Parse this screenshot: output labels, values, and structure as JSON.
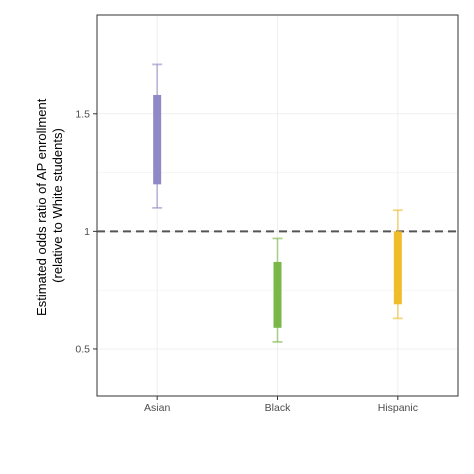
{
  "chart_data": {
    "type": "errorbar-boxes",
    "ylabel_lines": [
      "Estimated odds ratio of AP enrollment",
      "(relative to White students)"
    ],
    "xlabel": "",
    "categories": [
      "Asian",
      "Black",
      "Hispanic"
    ],
    "series": [
      {
        "category": "Asian",
        "color": "#8f8ac5",
        "box": [
          1.2,
          1.58
        ],
        "whisker": [
          1.1,
          1.71
        ]
      },
      {
        "category": "Black",
        "color": "#7ab648",
        "box": [
          0.59,
          0.87
        ],
        "whisker": [
          0.53,
          0.97
        ]
      },
      {
        "category": "Hispanic",
        "color": "#efbc2a",
        "box": [
          0.69,
          1.0
        ],
        "whisker": [
          0.63,
          1.09
        ]
      }
    ],
    "yticks": [
      0.5,
      1,
      1.5
    ],
    "ytick_labels": [
      "0.5",
      "1",
      "1.5"
    ],
    "ylim": [
      0.3,
      1.92
    ],
    "reference_line": 1,
    "grid": true
  }
}
